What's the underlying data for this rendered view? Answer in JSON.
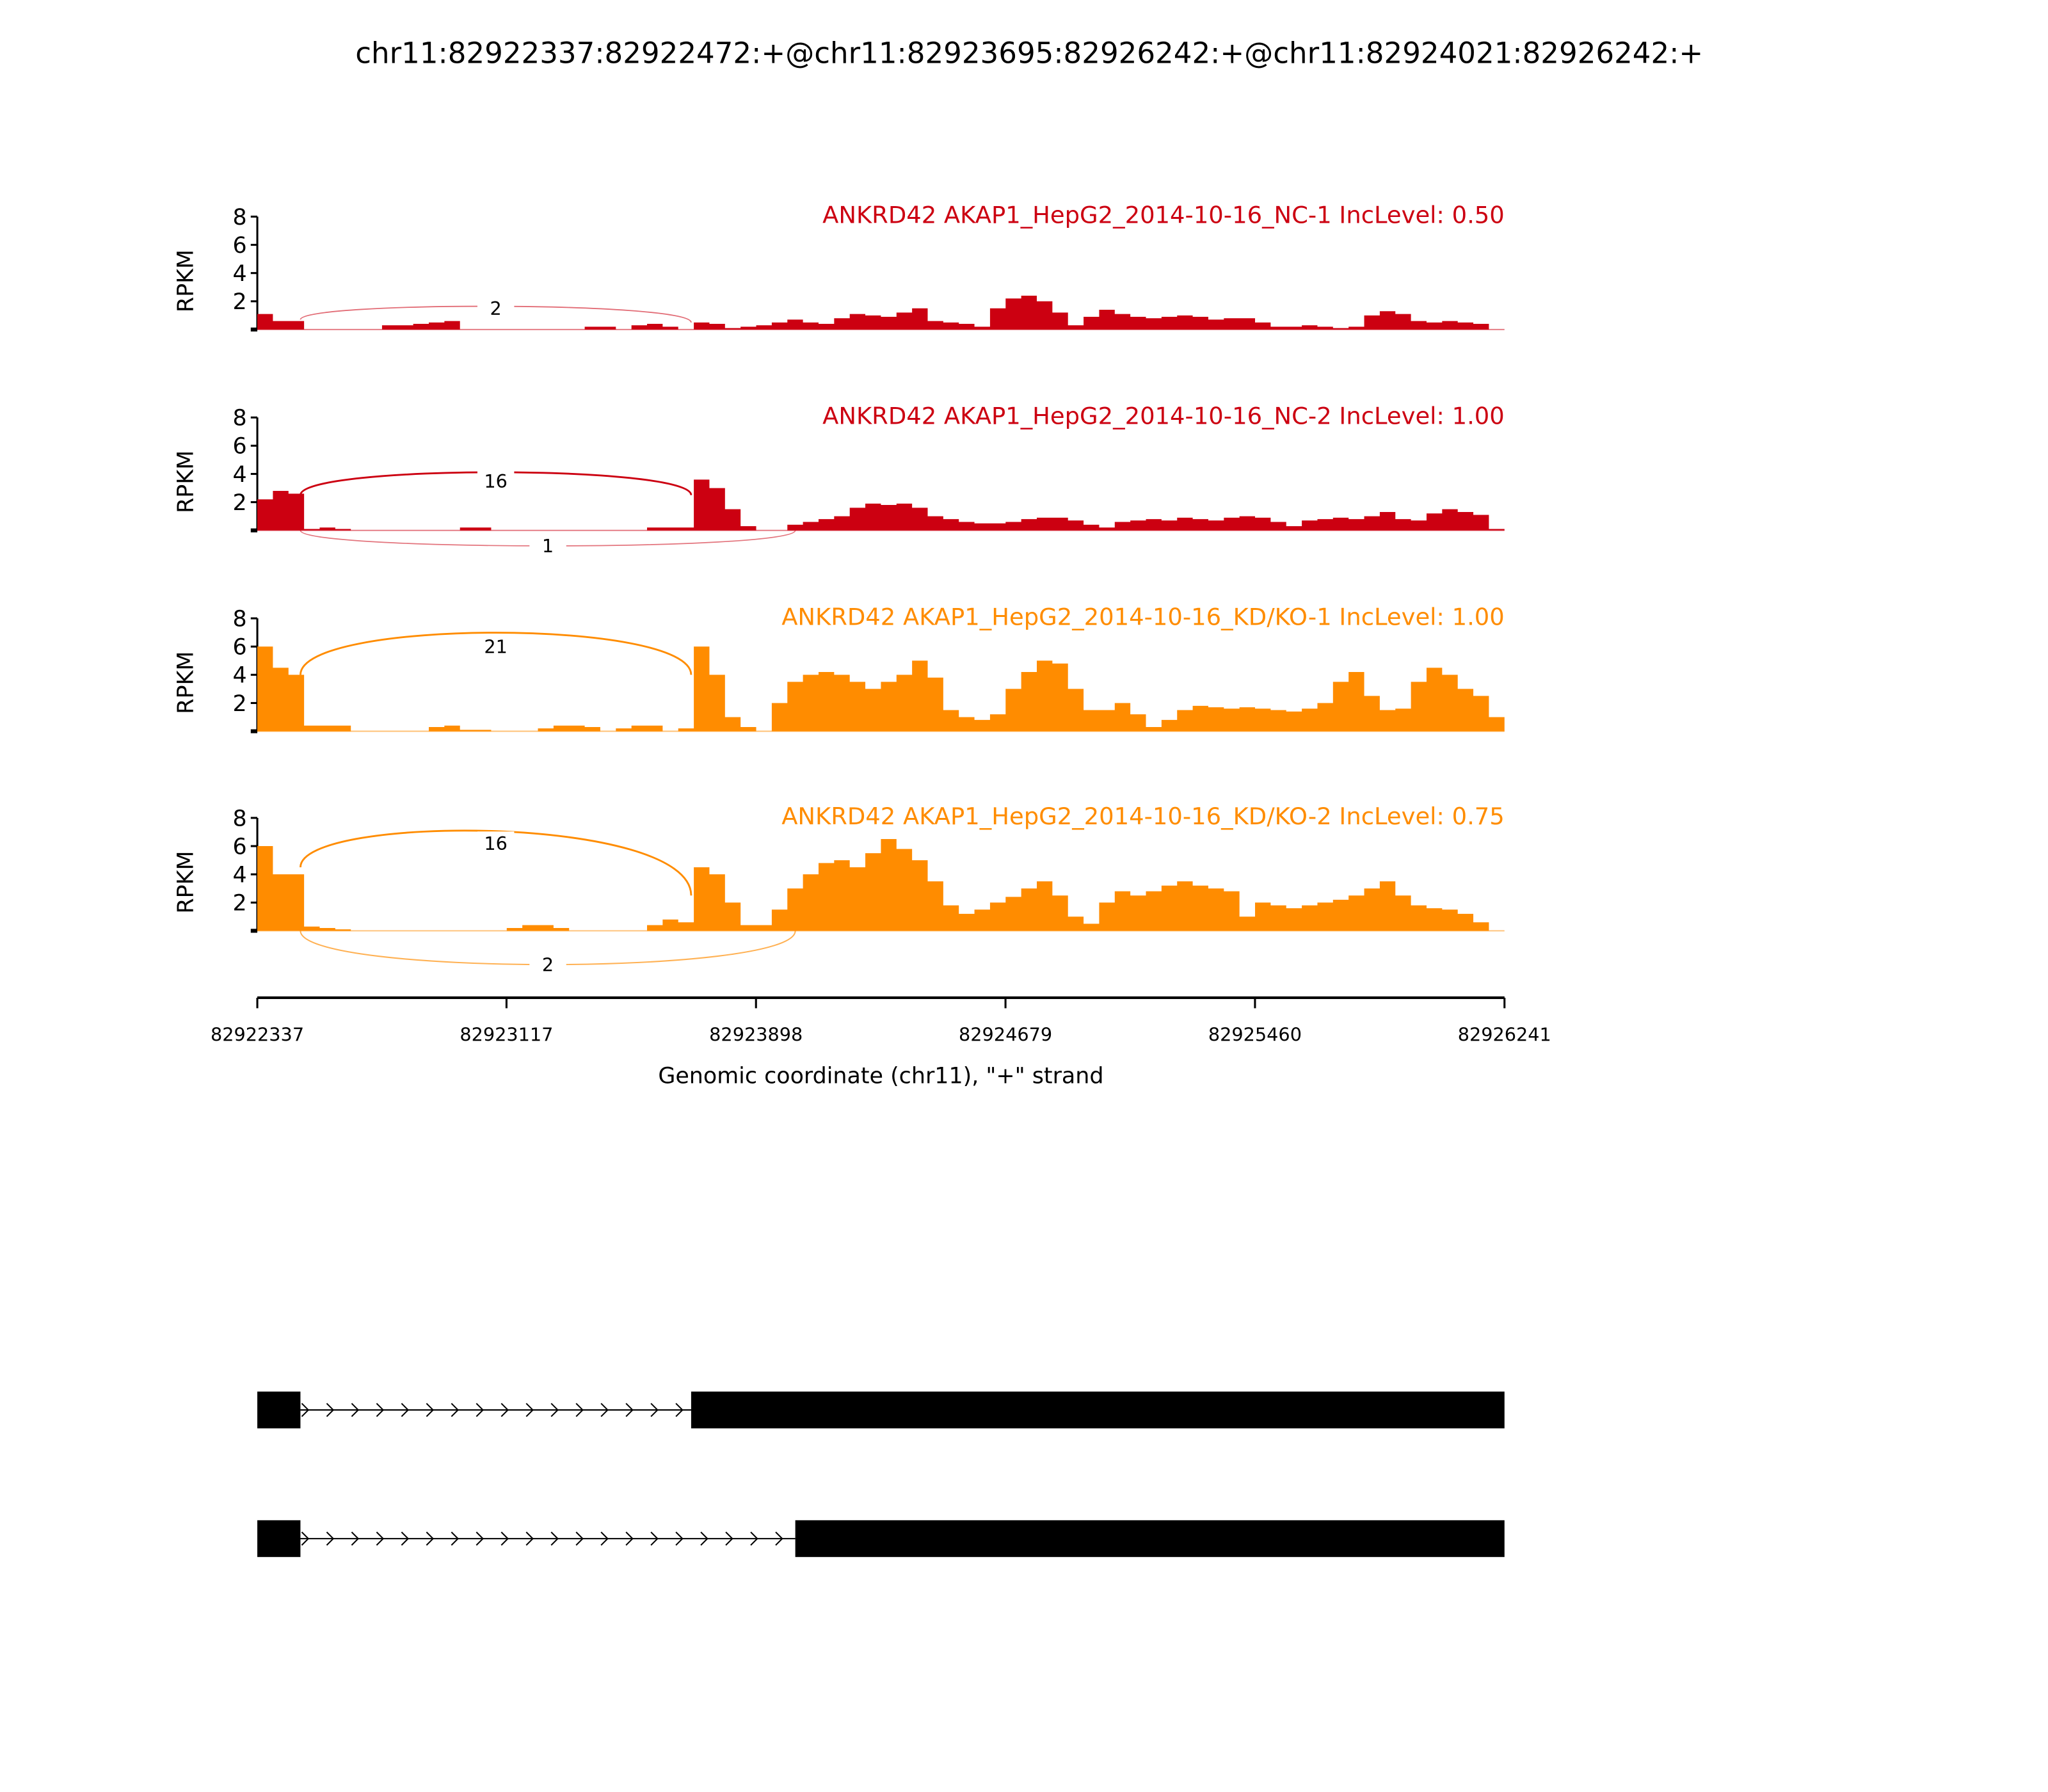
{
  "chart_data": {
    "type": "area",
    "plot_kind": "sashimi",
    "title": "chr11:82922337:82922472:+@chr11:82923695:82926242:+@chr11:82924021:82926242:+",
    "xlabel": "Genomic coordinate (chr11), \"+\" strand",
    "ylabel": "RPKM",
    "xlim": [
      82922337,
      82926241
    ],
    "xticks": [
      "82922337",
      "82923117",
      "82923898",
      "82924679",
      "82925460",
      "82926241"
    ],
    "ylim": [
      0,
      8
    ],
    "yticks": [
      "2",
      "4",
      "6",
      "8"
    ],
    "coverage_bin_count": 80,
    "colors": {
      "NC": "#CC0011",
      "KD": "#FF8C00",
      "axis": "#000000"
    },
    "samples": [
      {
        "label": "ANKRD42 AKAP1_HepG2_2014-10-16_NC-1 IncLevel: 0.50",
        "group": "NC",
        "coverage": [
          1.1,
          0.6,
          0.6,
          0,
          0,
          0,
          0,
          0,
          0.3,
          0.3,
          0.4,
          0.5,
          0.6,
          0,
          0,
          0,
          0,
          0,
          0,
          0,
          0,
          0.2,
          0.2,
          0,
          0.3,
          0.4,
          0.2,
          0,
          0.5,
          0.4,
          0.1,
          0.2,
          0.3,
          0.5,
          0.7,
          0.5,
          0.4,
          0.8,
          1.1,
          1.0,
          0.9,
          1.2,
          1.5,
          0.6,
          0.5,
          0.4,
          0.2,
          1.5,
          2.2,
          2.4,
          2.0,
          1.2,
          0.3,
          0.9,
          1.4,
          1.1,
          0.9,
          0.8,
          0.9,
          1.0,
          0.9,
          0.7,
          0.8,
          0.8,
          0.5,
          0.2,
          0.2,
          0.3,
          0.2,
          0.1,
          0.2,
          1.0,
          1.3,
          1.1,
          0.6,
          0.5,
          0.6,
          0.5,
          0.4,
          0
        ],
        "junctions": [
          {
            "start": 82922472,
            "end": 82923695,
            "count": "2",
            "side": "above",
            "apex": 1.5,
            "y0": 0.7,
            "y1": 0.5,
            "strength": 0.35
          }
        ]
      },
      {
        "label": "ANKRD42 AKAP1_HepG2_2014-10-16_NC-2 IncLevel: 1.00",
        "group": "NC",
        "coverage": [
          2.2,
          2.8,
          2.6,
          0.1,
          0.2,
          0.1,
          0,
          0,
          0,
          0,
          0,
          0,
          0,
          0.2,
          0.2,
          0,
          0,
          0,
          0,
          0,
          0,
          0,
          0,
          0,
          0,
          0.2,
          0.2,
          0.2,
          3.6,
          3.0,
          1.5,
          0.3,
          0,
          0,
          0.4,
          0.6,
          0.8,
          1.0,
          1.6,
          1.9,
          1.8,
          1.9,
          1.6,
          1.0,
          0.8,
          0.6,
          0.5,
          0.5,
          0.6,
          0.8,
          0.9,
          0.9,
          0.7,
          0.4,
          0.2,
          0.6,
          0.7,
          0.8,
          0.7,
          0.9,
          0.8,
          0.7,
          0.9,
          1.0,
          0.9,
          0.6,
          0.3,
          0.7,
          0.8,
          0.9,
          0.8,
          1.0,
          1.3,
          0.8,
          0.7,
          1.2,
          1.5,
          1.3,
          1.1,
          0.1
        ],
        "junctions": [
          {
            "start": 82922472,
            "end": 82923695,
            "count": "16",
            "side": "above",
            "apex": 3.5,
            "y0": 2.5,
            "y1": 2.5,
            "strength": 1
          },
          {
            "start": 82922472,
            "end": 82924021,
            "count": "1",
            "side": "below",
            "apex": 1.1,
            "y0": 0,
            "y1": 0,
            "strength": 0.3
          }
        ]
      },
      {
        "label": "ANKRD42 AKAP1_HepG2_2014-10-16_KD/KO-1 IncLevel: 1.00",
        "group": "KD",
        "coverage": [
          6.0,
          4.5,
          4.0,
          0.4,
          0.4,
          0.4,
          0,
          0,
          0,
          0,
          0,
          0.3,
          0.4,
          0.1,
          0.1,
          0,
          0,
          0,
          0.2,
          0.4,
          0.4,
          0.3,
          0,
          0.2,
          0.4,
          0.4,
          0,
          0.2,
          6.0,
          4.0,
          1.0,
          0.3,
          0,
          2.0,
          3.5,
          4.0,
          4.2,
          4.0,
          3.5,
          3.0,
          3.5,
          4.0,
          5.0,
          3.8,
          1.5,
          1.0,
          0.8,
          1.2,
          3.0,
          4.2,
          5.0,
          4.8,
          3.0,
          1.5,
          1.5,
          2.0,
          1.2,
          0.3,
          0.8,
          1.5,
          1.8,
          1.7,
          1.6,
          1.7,
          1.6,
          1.5,
          1.4,
          1.6,
          2.0,
          3.5,
          4.2,
          2.5,
          1.5,
          1.6,
          3.5,
          4.5,
          4.0,
          3.0,
          2.5,
          1.0
        ],
        "junctions": [
          {
            "start": 82922472,
            "end": 82923695,
            "count": "21",
            "side": "above",
            "apex": 6.0,
            "y0": 4.0,
            "y1": 4.0,
            "strength": 1
          }
        ]
      },
      {
        "label": "ANKRD42 AKAP1_HepG2_2014-10-16_KD/KO-2 IncLevel: 0.75",
        "group": "KD",
        "coverage": [
          6.0,
          4.0,
          4.0,
          0.3,
          0.2,
          0.1,
          0,
          0,
          0,
          0,
          0,
          0,
          0,
          0,
          0,
          0,
          0.2,
          0.4,
          0.4,
          0.2,
          0,
          0,
          0,
          0,
          0,
          0.4,
          0.8,
          0.6,
          4.5,
          4.0,
          2.0,
          0.4,
          0.4,
          1.5,
          3.0,
          4.0,
          4.8,
          5.0,
          4.5,
          5.5,
          6.5,
          5.8,
          5.0,
          3.5,
          1.8,
          1.2,
          1.5,
          2.0,
          2.4,
          3.0,
          3.5,
          2.5,
          1.0,
          0.5,
          2.0,
          2.8,
          2.5,
          2.8,
          3.2,
          3.5,
          3.2,
          3.0,
          2.8,
          1.0,
          2.0,
          1.8,
          1.6,
          1.8,
          2.0,
          2.2,
          2.5,
          3.0,
          3.5,
          2.5,
          1.8,
          1.6,
          1.5,
          1.2,
          0.6,
          0
        ],
        "junctions": [
          {
            "start": 82922472,
            "end": 82923695,
            "count": "16",
            "side": "above",
            "apex": 6.2,
            "y0": 4.5,
            "y1": 2.5,
            "strength": 1
          },
          {
            "start": 82922472,
            "end": 82924021,
            "count": "2",
            "side": "below",
            "apex": 2.4,
            "y0": 0,
            "y1": 0,
            "strength": 0.5
          }
        ]
      }
    ],
    "transcripts": [
      {
        "exons": [
          [
            82922337,
            82922472
          ],
          [
            82923695,
            82926242
          ]
        ]
      },
      {
        "exons": [
          [
            82922337,
            82922472
          ],
          [
            82924021,
            82926242
          ]
        ]
      }
    ]
  }
}
